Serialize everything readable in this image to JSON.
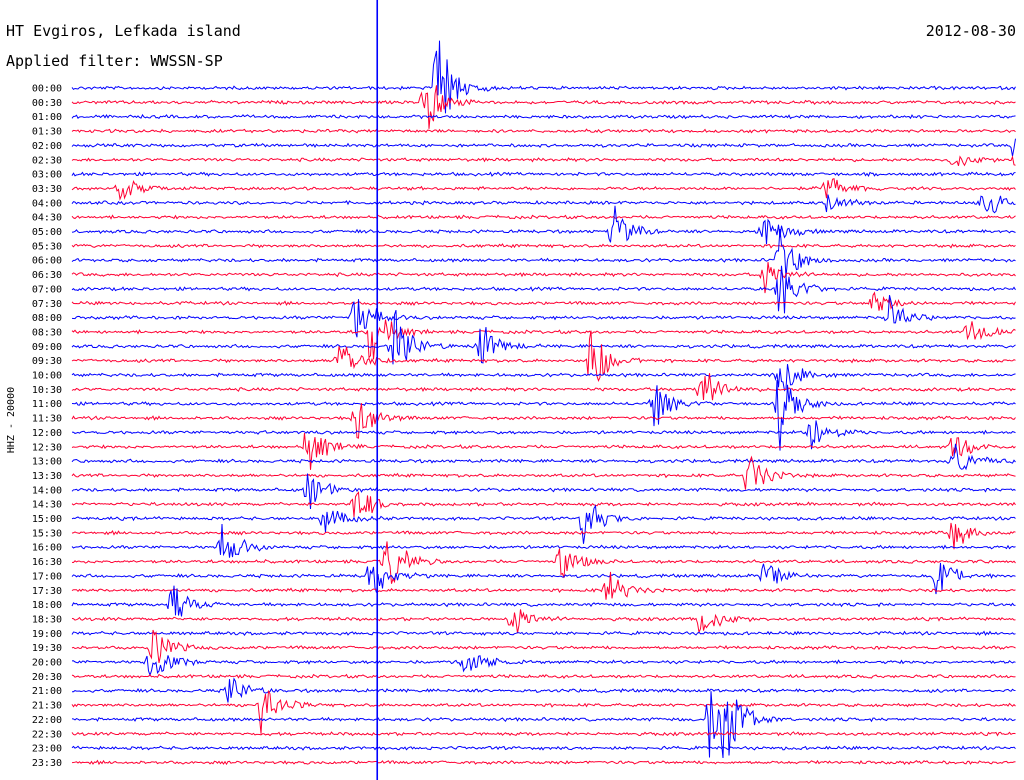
{
  "chart_data": {
    "type": "line",
    "title": "HT Evgiros, Lefkada island",
    "date": "2012-08-30",
    "subtitle": "Applied filter: WWSSN-SP",
    "ylabel": "HHZ - 20000",
    "row_labels": [
      "00:00",
      "00:30",
      "01:00",
      "01:30",
      "02:00",
      "02:30",
      "03:00",
      "03:30",
      "04:00",
      "04:30",
      "05:00",
      "05:30",
      "06:00",
      "06:30",
      "07:00",
      "07:30",
      "08:00",
      "08:30",
      "09:00",
      "09:30",
      "10:00",
      "10:30",
      "11:00",
      "11:30",
      "12:00",
      "12:30",
      "13:00",
      "13:30",
      "14:00",
      "14:30",
      "15:00",
      "15:30",
      "16:00",
      "16:30",
      "17:00",
      "17:30",
      "18:00",
      "18:30",
      "19:00",
      "19:30",
      "20:00",
      "20:30",
      "21:00",
      "21:30",
      "22:00",
      "22:30",
      "23:00",
      "23:30"
    ],
    "trace_colors": [
      "#0000ff",
      "#ff0033"
    ],
    "x_range_minutes": [
      0,
      30
    ],
    "events": [
      {
        "row": 0,
        "x": 11.6,
        "amp": 70
      },
      {
        "row": 1,
        "x": 11.2,
        "amp": 40
      },
      {
        "row": 4,
        "x": 30,
        "amp": 25
      },
      {
        "row": 5,
        "x": 30,
        "amp": 22
      },
      {
        "row": 5,
        "x": 28,
        "amp": 12
      },
      {
        "row": 7,
        "x": 1.5,
        "amp": 18
      },
      {
        "row": 7,
        "x": 24,
        "amp": 20
      },
      {
        "row": 8,
        "x": 24,
        "amp": 15
      },
      {
        "row": 8,
        "x": 29,
        "amp": 20
      },
      {
        "row": 10,
        "x": 17.2,
        "amp": 30
      },
      {
        "row": 10,
        "x": 22,
        "amp": 25
      },
      {
        "row": 12,
        "x": 22.5,
        "amp": 35
      },
      {
        "row": 13,
        "x": 22,
        "amp": 20
      },
      {
        "row": 14,
        "x": 22.5,
        "amp": 40
      },
      {
        "row": 15,
        "x": 25.5,
        "amp": 15
      },
      {
        "row": 16,
        "x": 9,
        "amp": 35
      },
      {
        "row": 16,
        "x": 26,
        "amp": 25
      },
      {
        "row": 17,
        "x": 9.5,
        "amp": 40
      },
      {
        "row": 17,
        "x": 28.5,
        "amp": 20
      },
      {
        "row": 18,
        "x": 10.2,
        "amp": 50
      },
      {
        "row": 18,
        "x": 13,
        "amp": 30
      },
      {
        "row": 19,
        "x": 8.5,
        "amp": 40
      },
      {
        "row": 19,
        "x": 16.5,
        "amp": 45
      },
      {
        "row": 20,
        "x": 22.5,
        "amp": 30
      },
      {
        "row": 21,
        "x": 20,
        "amp": 35
      },
      {
        "row": 22,
        "x": 18.5,
        "amp": 30
      },
      {
        "row": 22,
        "x": 22.5,
        "amp": 50
      },
      {
        "row": 23,
        "x": 9,
        "amp": 35
      },
      {
        "row": 24,
        "x": 23.5,
        "amp": 25
      },
      {
        "row": 25,
        "x": 7.5,
        "amp": 30
      },
      {
        "row": 25,
        "x": 28,
        "amp": 20
      },
      {
        "row": 26,
        "x": 28,
        "amp": 30
      },
      {
        "row": 27,
        "x": 21.5,
        "amp": 30
      },
      {
        "row": 28,
        "x": 7.5,
        "amp": 25
      },
      {
        "row": 29,
        "x": 9,
        "amp": 25
      },
      {
        "row": 30,
        "x": 16.2,
        "amp": 35
      },
      {
        "row": 30,
        "x": 8,
        "amp": 20
      },
      {
        "row": 31,
        "x": 28,
        "amp": 20
      },
      {
        "row": 32,
        "x": 4.8,
        "amp": 30
      },
      {
        "row": 33,
        "x": 10,
        "amp": 40
      },
      {
        "row": 33,
        "x": 15.5,
        "amp": 25
      },
      {
        "row": 34,
        "x": 9.5,
        "amp": 30
      },
      {
        "row": 34,
        "x": 22,
        "amp": 20
      },
      {
        "row": 34,
        "x": 27.5,
        "amp": 25
      },
      {
        "row": 35,
        "x": 17,
        "amp": 25
      },
      {
        "row": 36,
        "x": 3.2,
        "amp": 25
      },
      {
        "row": 37,
        "x": 14,
        "amp": 20
      },
      {
        "row": 37,
        "x": 20,
        "amp": 25
      },
      {
        "row": 39,
        "x": 2.6,
        "amp": 25
      },
      {
        "row": 40,
        "x": 2.5,
        "amp": 30
      },
      {
        "row": 40,
        "x": 12.5,
        "amp": 25
      },
      {
        "row": 42,
        "x": 5,
        "amp": 20
      },
      {
        "row": 43,
        "x": 6,
        "amp": 35
      },
      {
        "row": 44,
        "x": 20.3,
        "amp": 70
      },
      {
        "row": 44,
        "x": 20.8,
        "amp": 35
      }
    ],
    "marker_x_minutes": 9.7,
    "grid": false,
    "legend": "none"
  }
}
